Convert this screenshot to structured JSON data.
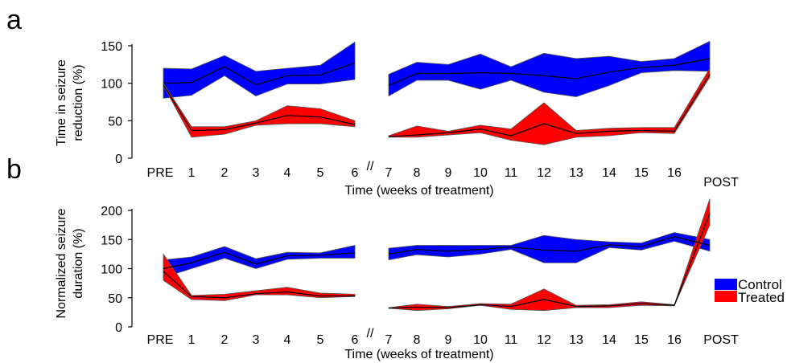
{
  "chart_data": [
    {
      "panel": "a",
      "type": "area",
      "ylabel_lines": [
        "Time in seizure",
        "reduction (%)"
      ],
      "xlabel": "Time (weeks of treatment)",
      "ylim": [
        0,
        150
      ],
      "yticks": [
        0,
        50,
        100,
        150
      ],
      "categories": [
        "PRE",
        "1",
        "2",
        "3",
        "4",
        "5",
        "6",
        "7",
        "8",
        "9",
        "10",
        "11",
        "12",
        "13",
        "14",
        "15",
        "16",
        "POST"
      ],
      "break_marker": "//",
      "series": [
        {
          "name": "Control",
          "color": "#0000ff",
          "mean": [
            100,
            101,
            122,
            98,
            110,
            111,
            127,
            97,
            113,
            113,
            114,
            113,
            110,
            106,
            115,
            121,
            124,
            133
          ],
          "upper": [
            120,
            119,
            137,
            116,
            120,
            124,
            155,
            112,
            128,
            125,
            139,
            122,
            140,
            133,
            136,
            129,
            133,
            156
          ],
          "lower": [
            80,
            84,
            110,
            83,
            99,
            99,
            105,
            83,
            104,
            104,
            92,
            104,
            88,
            82,
            97,
            114,
            117,
            116
          ]
        },
        {
          "name": "Treated",
          "color": "#ff0000",
          "mean": [
            98,
            37,
            38,
            47,
            57,
            55,
            45,
            29,
            31,
            34,
            39,
            30,
            46,
            33,
            36,
            37,
            36,
            112
          ],
          "upper": [
            100,
            42,
            42,
            50,
            70,
            66,
            50,
            30,
            43,
            36,
            44,
            39,
            74,
            37,
            40,
            41,
            41,
            120
          ],
          "lower": [
            97,
            28,
            32,
            44,
            46,
            46,
            42,
            28,
            28,
            31,
            34,
            24,
            18,
            28,
            30,
            34,
            33,
            108
          ]
        }
      ]
    },
    {
      "panel": "b",
      "type": "area",
      "ylabel_lines": [
        "Normalized seizure",
        "duration (%)"
      ],
      "xlabel": "Time (weeks of treatment)",
      "ylim": [
        0,
        200
      ],
      "yticks": [
        0,
        50,
        100,
        150,
        200
      ],
      "categories": [
        "PRE",
        "1",
        "2",
        "3",
        "4",
        "5",
        "6",
        "7",
        "8",
        "9",
        "10",
        "11",
        "12",
        "13",
        "14",
        "15",
        "16",
        "POST"
      ],
      "break_marker": "//",
      "series": [
        {
          "name": "Control",
          "color": "#0000ff",
          "mean": [
            100,
            110,
            128,
            108,
            122,
            123,
            127,
            125,
            133,
            130,
            133,
            137,
            132,
            130,
            141,
            138,
            155,
            140
          ],
          "upper": [
            115,
            120,
            138,
            117,
            128,
            127,
            140,
            135,
            140,
            140,
            140,
            140,
            157,
            150,
            146,
            144,
            162,
            150
          ],
          "lower": [
            85,
            100,
            118,
            100,
            116,
            118,
            118,
            115,
            124,
            120,
            125,
            133,
            110,
            110,
            136,
            132,
            147,
            130
          ]
        },
        {
          "name": "Treated",
          "color": "#ff0000",
          "mean": [
            95,
            52,
            50,
            57,
            60,
            53,
            53,
            32,
            34,
            33,
            38,
            35,
            47,
            35,
            36,
            40,
            37,
            195
          ],
          "upper": [
            125,
            54,
            56,
            62,
            68,
            58,
            56,
            33,
            39,
            35,
            40,
            39,
            65,
            37,
            38,
            43,
            38,
            220
          ],
          "lower": [
            80,
            47,
            45,
            55,
            55,
            50,
            52,
            32,
            28,
            31,
            37,
            30,
            28,
            33,
            33,
            37,
            36,
            175
          ]
        }
      ]
    }
  ],
  "legend": {
    "position": "right",
    "items": [
      {
        "label": "Control",
        "color": "#0000ff"
      },
      {
        "label": "Treated",
        "color": "#ff0000"
      }
    ]
  }
}
